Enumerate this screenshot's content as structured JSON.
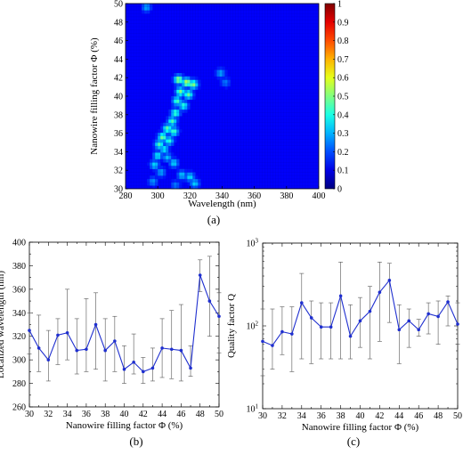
{
  "chart_data": [
    {
      "panel": "(a)",
      "type": "heatmap",
      "xlabel": "Wavelength (nm)",
      "ylabel": "Nanowire filling factor Φ (%)",
      "xlim": [
        280,
        400
      ],
      "ylim": [
        30,
        50
      ],
      "xticks": [
        280,
        300,
        320,
        340,
        360,
        380,
        400
      ],
      "yticks": [
        30,
        32,
        34,
        36,
        38,
        40,
        42,
        44,
        46,
        48,
        50
      ],
      "colorbar": {
        "range": [
          0,
          1
        ],
        "ticks": [
          "0",
          "0.1",
          "0.2",
          "0.3",
          "0.4",
          "0.5",
          "0.6",
          "0.7",
          "0.8",
          "0.9",
          "1"
        ]
      },
      "background_value": 0.12,
      "hotspots": [
        {
          "x": 313,
          "y": 41.8,
          "value": 0.55
        },
        {
          "x": 318,
          "y": 41.5,
          "value": 0.58
        },
        {
          "x": 322,
          "y": 41.3,
          "value": 0.52
        },
        {
          "x": 314,
          "y": 40.5,
          "value": 0.5
        },
        {
          "x": 319,
          "y": 40.2,
          "value": 0.48
        },
        {
          "x": 312,
          "y": 39.5,
          "value": 0.45
        },
        {
          "x": 316,
          "y": 39.0,
          "value": 0.42
        },
        {
          "x": 311,
          "y": 38.2,
          "value": 0.45
        },
        {
          "x": 309,
          "y": 37.3,
          "value": 0.45
        },
        {
          "x": 306,
          "y": 36.5,
          "value": 0.48
        },
        {
          "x": 310,
          "y": 36.2,
          "value": 0.45
        },
        {
          "x": 303,
          "y": 35.6,
          "value": 0.5
        },
        {
          "x": 307,
          "y": 35.2,
          "value": 0.42
        },
        {
          "x": 301,
          "y": 34.8,
          "value": 0.45
        },
        {
          "x": 304,
          "y": 34.3,
          "value": 0.38
        },
        {
          "x": 300,
          "y": 33.6,
          "value": 0.38
        },
        {
          "x": 306,
          "y": 33.4,
          "value": 0.32
        },
        {
          "x": 298,
          "y": 32.6,
          "value": 0.35
        },
        {
          "x": 310,
          "y": 32.8,
          "value": 0.35
        },
        {
          "x": 302,
          "y": 31.8,
          "value": 0.3
        },
        {
          "x": 315,
          "y": 31.5,
          "value": 0.33
        },
        {
          "x": 320,
          "y": 31.3,
          "value": 0.36
        },
        {
          "x": 297,
          "y": 30.8,
          "value": 0.28
        },
        {
          "x": 323,
          "y": 30.6,
          "value": 0.34
        },
        {
          "x": 339,
          "y": 42.5,
          "value": 0.3
        },
        {
          "x": 342,
          "y": 41.5,
          "value": 0.25
        },
        {
          "x": 293,
          "y": 49.6,
          "value": 0.3
        },
        {
          "x": 311,
          "y": 30.4,
          "value": 0.25
        }
      ]
    },
    {
      "panel": "(b)",
      "type": "line",
      "xlabel": "Nanowire filling factor Φ (%)",
      "ylabel": "Localized wavelength (nm)",
      "xlim": [
        30,
        50
      ],
      "ylim": [
        260,
        400
      ],
      "xticks": [
        30,
        32,
        34,
        36,
        38,
        40,
        42,
        44,
        46,
        48,
        50
      ],
      "yticks": [
        260,
        280,
        300,
        320,
        340,
        360,
        380,
        400
      ],
      "x": [
        30,
        31,
        32,
        33,
        34,
        35,
        36,
        37,
        38,
        39,
        40,
        41,
        42,
        43,
        44,
        45,
        46,
        47,
        48,
        49,
        50
      ],
      "y": [
        325,
        310,
        300,
        321,
        323,
        308,
        309,
        330,
        308,
        316,
        292,
        298,
        290,
        293,
        310,
        309,
        308,
        293,
        372,
        350,
        337
      ],
      "err_low": [
        305,
        290,
        282,
        296,
        300,
        288,
        290,
        292,
        282,
        290,
        280,
        288,
        280,
        282,
        285,
        284,
        282,
        286,
        358,
        320,
        306
      ],
      "err_high": [
        340,
        338,
        325,
        335,
        360,
        335,
        352,
        357,
        335,
        337,
        312,
        322,
        302,
        310,
        335,
        342,
        347,
        312,
        385,
        388,
        357
      ]
    },
    {
      "panel": "(c)",
      "type": "line",
      "xlabel": "Nanowire filling factor Φ (%)",
      "ylabel": "Quality factor Q",
      "yscale": "log",
      "xlim": [
        30,
        50
      ],
      "ylim": [
        10,
        1000
      ],
      "xticks": [
        30,
        32,
        34,
        36,
        38,
        40,
        42,
        44,
        46,
        48,
        50
      ],
      "yticks": [
        10,
        100,
        1000
      ],
      "ytick_labels": [
        [
          "10",
          "1"
        ],
        [
          "10",
          "2"
        ],
        [
          "10",
          "3"
        ]
      ],
      "x": [
        30,
        31,
        32,
        33,
        34,
        35,
        36,
        37,
        38,
        39,
        40,
        41,
        42,
        43,
        44,
        45,
        46,
        47,
        48,
        49,
        50
      ],
      "y": [
        65,
        58,
        85,
        80,
        190,
        125,
        97,
        97,
        230,
        75,
        115,
        150,
        255,
        355,
        90,
        115,
        90,
        140,
        130,
        195,
        105
      ],
      "err_low": [
        25,
        30,
        45,
        28,
        40,
        35,
        40,
        40,
        40,
        40,
        55,
        40,
        65,
        110,
        35,
        55,
        75,
        80,
        60,
        100,
        60
      ],
      "err_high": [
        160,
        160,
        170,
        170,
        430,
        200,
        190,
        190,
        590,
        180,
        220,
        300,
        590,
        570,
        180,
        160,
        120,
        190,
        200,
        230,
        190
      ]
    }
  ],
  "panel_labels": {
    "a": "(a)",
    "b": "(b)",
    "c": "(c)"
  }
}
